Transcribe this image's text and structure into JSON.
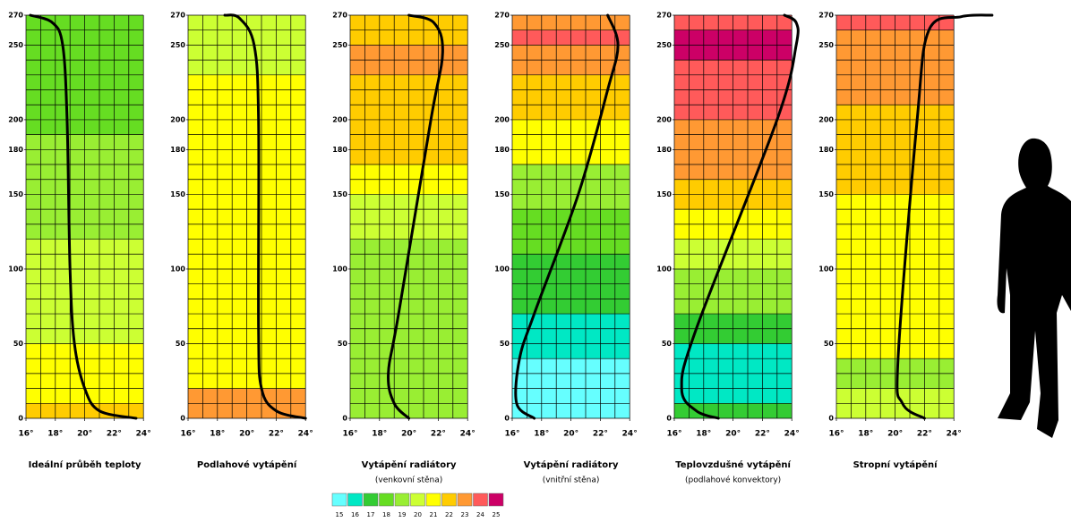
{
  "legend": {
    "values": [
      15,
      16,
      17,
      18,
      19,
      20,
      21,
      22,
      23,
      24,
      25
    ],
    "colors": [
      "#66ffff",
      "#00e8c4",
      "#33cc33",
      "#66dd22",
      "#99ee33",
      "#ccff33",
      "#ffff00",
      "#ffcc00",
      "#ff9933",
      "#ff5a5a",
      "#cc0066"
    ]
  },
  "ylim": [
    0,
    270
  ],
  "yticks": [
    0,
    50,
    100,
    150,
    180,
    200,
    250,
    270
  ],
  "xlim": [
    16,
    24
  ],
  "xticks": [
    {
      "value": 16,
      "label": "16°"
    },
    {
      "value": 18,
      "label": "18°"
    },
    {
      "value": 20,
      "label": "20°"
    },
    {
      "value": 22,
      "label": "22°"
    },
    {
      "value": 24,
      "label": "24°"
    }
  ],
  "panels": [
    {
      "title": "Ideální průběh teploty",
      "bands": [
        22,
        21,
        21,
        21,
        21,
        20,
        20,
        20,
        20,
        20,
        20,
        20,
        19,
        19,
        19,
        19,
        19,
        19,
        19,
        18,
        18,
        18,
        18,
        18,
        18,
        18,
        18
      ],
      "curve": {
        "x": [
          23.5,
          21,
          20,
          19.3,
          19,
          18.8,
          18.5,
          17.8,
          16.3
        ],
        "y": [
          0,
          5,
          20,
          50,
          100,
          200,
          250,
          265,
          270
        ]
      }
    },
    {
      "title": "Podlahové vytápění",
      "bands": [
        23,
        23,
        21,
        21,
        21,
        21,
        21,
        21,
        21,
        21,
        21,
        21,
        21,
        21,
        21,
        21,
        21,
        21,
        21,
        21,
        21,
        21,
        21,
        20,
        20,
        20,
        20
      ],
      "curve": {
        "x": [
          24,
          22,
          21,
          20.8,
          20.8,
          20.5,
          19.5,
          18.5
        ],
        "y": [
          0,
          5,
          20,
          60,
          200,
          250,
          268,
          270
        ]
      }
    },
    {
      "title": "Vytápění radiátory",
      "subtitle": "(venkovní stěna)",
      "bands": [
        19,
        19,
        19,
        19,
        19,
        19,
        19,
        19,
        19,
        19,
        19,
        19,
        20,
        20,
        20,
        21,
        21,
        22,
        22,
        22,
        22,
        22,
        22,
        23,
        23,
        22,
        22
      ],
      "curve": {
        "x": [
          20,
          19,
          18.6,
          19.3,
          21.5,
          22.3,
          21.7,
          20
        ],
        "y": [
          0,
          10,
          30,
          70,
          200,
          245,
          265,
          270
        ]
      }
    },
    {
      "title": "Vytápění radiátory",
      "subtitle": "(vnitřní stěna)",
      "bands": [
        15,
        15,
        15,
        15,
        16,
        16,
        16,
        17,
        17,
        17,
        17,
        18,
        18,
        18,
        19,
        19,
        19,
        21,
        21,
        21,
        22,
        22,
        22,
        23,
        23,
        24,
        23
      ],
      "curve": {
        "x": [
          17.5,
          16.3,
          16.5,
          17.5,
          20.5,
          22.5,
          23.2,
          22.5
        ],
        "y": [
          0,
          10,
          40,
          70,
          150,
          220,
          250,
          270
        ]
      }
    },
    {
      "title": "Teplovzdušné vytápění",
      "subtitle": "(podlahové konvektory)",
      "bands": [
        17,
        16,
        16,
        16,
        16,
        17,
        17,
        19,
        19,
        19,
        20,
        20,
        21,
        21,
        22,
        22,
        23,
        23,
        23,
        23,
        24,
        24,
        24,
        24,
        25,
        25,
        24
      ],
      "curve": {
        "x": [
          19,
          17.5,
          16.5,
          17.5,
          23,
          24.3,
          24.3,
          23.5
        ],
        "y": [
          0,
          5,
          20,
          60,
          200,
          250,
          265,
          270
        ]
      }
    },
    {
      "title": "Stropní vytápění",
      "bands": [
        20,
        20,
        19,
        19,
        21,
        21,
        21,
        21,
        21,
        21,
        21,
        21,
        21,
        21,
        21,
        22,
        22,
        22,
        22,
        22,
        22,
        23,
        23,
        23,
        23,
        23,
        24
      ],
      "curve": {
        "x": [
          22,
          20.5,
          20.2,
          21.5,
          22.3,
          24.5,
          26.6
        ],
        "y": [
          0,
          10,
          40,
          200,
          260,
          269,
          270
        ]
      }
    }
  ]
}
